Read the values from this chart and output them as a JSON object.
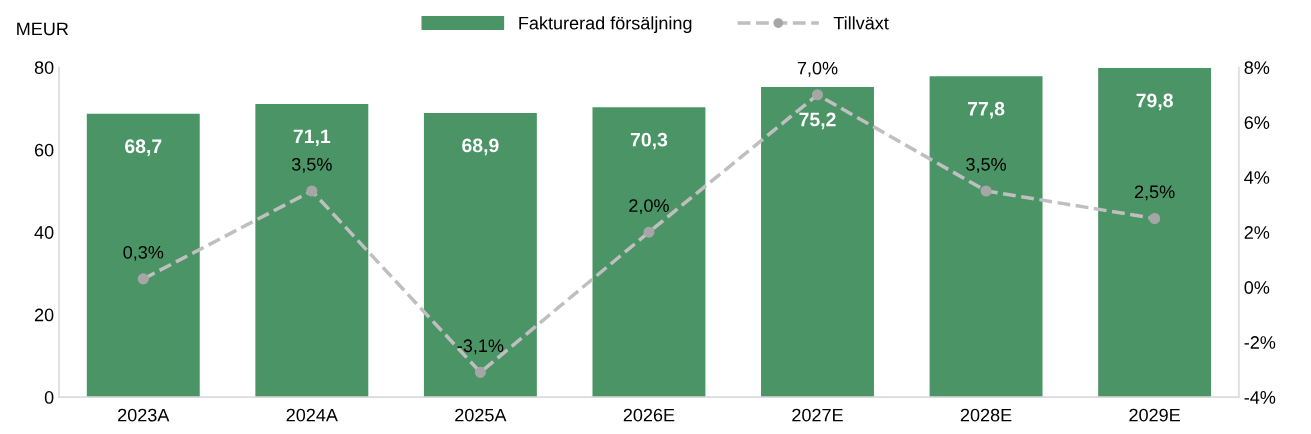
{
  "chart_data": {
    "type": "bar",
    "ylabel": "MEUR",
    "categories": [
      "2023A",
      "2024A",
      "2025A",
      "2026E",
      "2027E",
      "2028E",
      "2029E"
    ],
    "series": [
      {
        "name": "Fakturerad försäljning",
        "color": "#4a9466",
        "values": [
          68.7,
          71.1,
          68.9,
          70.3,
          75.2,
          77.8,
          79.8
        ],
        "value_labels": [
          "68,7",
          "71,1",
          "68,9",
          "70,3",
          "75,2",
          "77,8",
          "79,8"
        ]
      },
      {
        "name": "Tillväxt",
        "type": "line",
        "axis": "y2",
        "color": "#bfbfbf",
        "values": [
          0.3,
          3.5,
          -3.1,
          2.0,
          7.0,
          3.5,
          2.5
        ],
        "value_labels": [
          "0,3%",
          "3,5%",
          "-3,1%",
          "2,0%",
          "7,0%",
          "3,5%",
          "2,5%"
        ]
      }
    ],
    "ylim": [
      0,
      80
    ],
    "yticks": [
      0,
      20,
      40,
      60,
      80
    ],
    "y2lim": [
      -4,
      8
    ],
    "y2ticks": [
      {
        "value": -4,
        "label": "-4%"
      },
      {
        "value": -2,
        "label": "-2%"
      },
      {
        "value": 0,
        "label": "0%"
      },
      {
        "value": 2,
        "label": "2%"
      },
      {
        "value": 4,
        "label": "4%"
      },
      {
        "value": 6,
        "label": "6%"
      },
      {
        "value": 8,
        "label": "8%"
      }
    ],
    "marker": "circle",
    "line_style": "dashed",
    "legend": "top",
    "grid": false
  }
}
